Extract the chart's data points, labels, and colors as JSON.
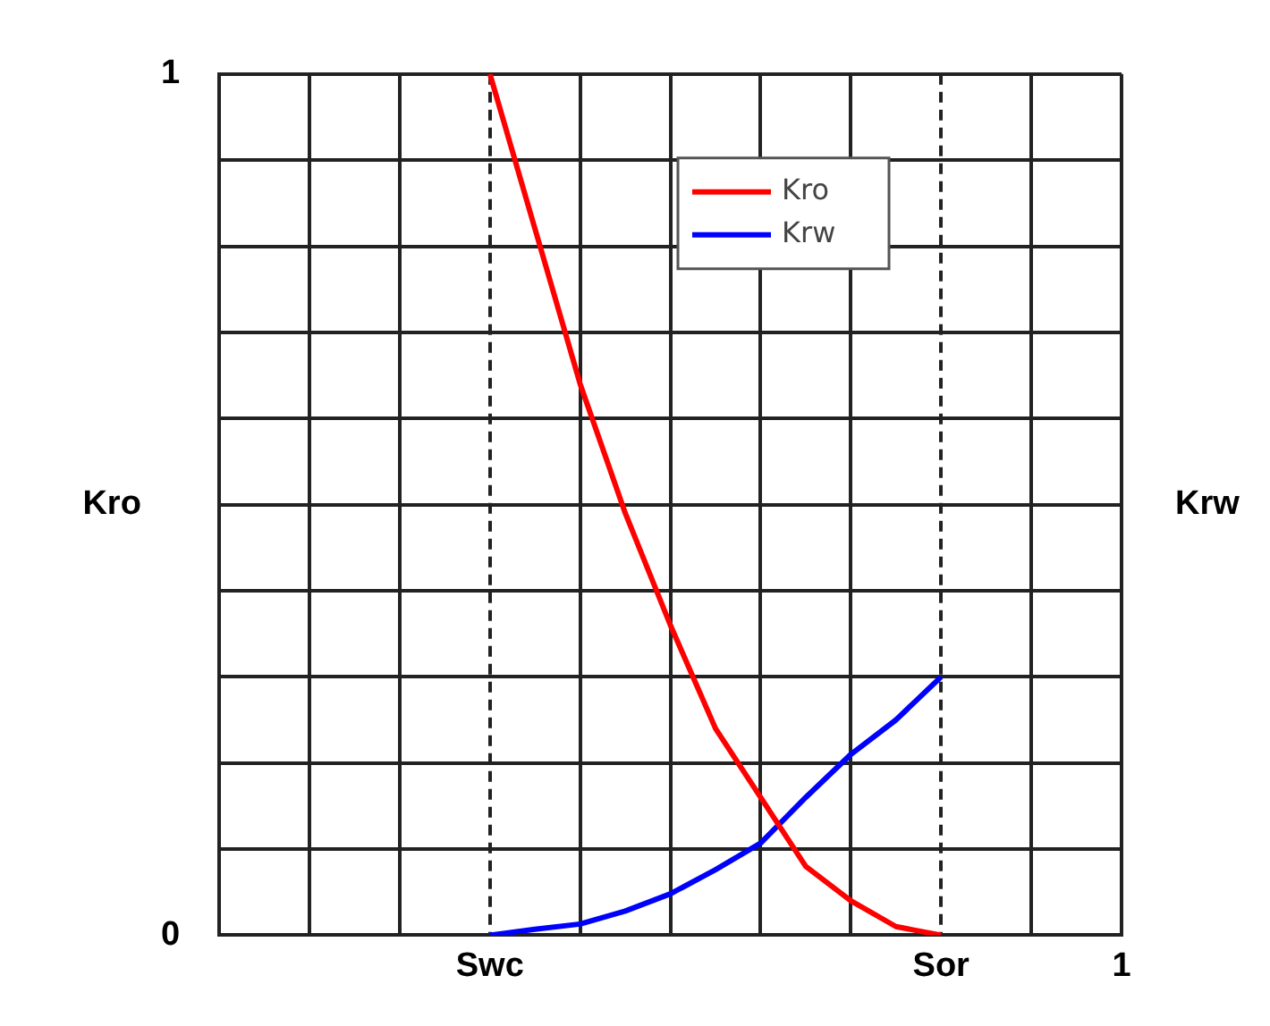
{
  "chart_data": {
    "type": "line",
    "ylabel": "Kro",
    "y2label": "Krw",
    "categories": [
      null,
      null,
      null,
      null,
      null,
      null,
      "Swc",
      null,
      null,
      null,
      null,
      null,
      null,
      null,
      null,
      null,
      "Sor",
      null,
      null,
      null,
      "1"
    ],
    "ylim": [
      0,
      1
    ],
    "yticks": [
      0,
      {
        "value": 0.1,
        "label": null
      },
      {
        "value": 0.2,
        "label": null
      },
      {
        "value": 0.3,
        "label": null
      },
      {
        "value": 0.4,
        "label": null
      },
      {
        "value": 0.5,
        "label": null
      },
      {
        "value": 0.6,
        "label": null
      },
      {
        "value": 0.7,
        "label": null
      },
      {
        "value": 0.8,
        "label": null
      },
      {
        "value": 0.9,
        "label": null
      },
      1
    ],
    "grid": true,
    "legend": "top right",
    "marker": "none",
    "line_style": "solid",
    "series": [
      {
        "name": "Kro",
        "color": "#ff0000",
        "values": [
          null,
          null,
          null,
          null,
          null,
          null,
          1,
          0.82,
          0.64,
          0.49,
          0.36,
          0.24,
          0.16,
          0.08,
          0.04,
          0.01,
          0,
          null,
          null,
          null,
          null
        ]
      },
      {
        "name": "Krw",
        "color": "#0000ff",
        "values": [
          null,
          null,
          null,
          null,
          null,
          null,
          0,
          0.007,
          0.013,
          0.028,
          0.048,
          0.076,
          0.107,
          0.16,
          0.21,
          0.25,
          0.3,
          null,
          null,
          null,
          null
        ]
      }
    ]
  }
}
